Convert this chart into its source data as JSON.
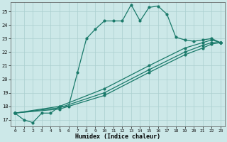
{
  "xlabel": "Humidex (Indice chaleur)",
  "xlim": [
    -0.5,
    23.5
  ],
  "ylim": [
    16.5,
    25.7
  ],
  "xticks": [
    0,
    1,
    2,
    3,
    4,
    5,
    6,
    7,
    8,
    9,
    10,
    11,
    12,
    13,
    14,
    15,
    16,
    17,
    18,
    19,
    20,
    21,
    22,
    23
  ],
  "yticks": [
    17,
    18,
    19,
    20,
    21,
    22,
    23,
    24,
    25
  ],
  "bg_color": "#cce8e8",
  "line_color": "#1a7a6a",
  "grid_color": "#aacfcf",
  "line1_x": [
    0,
    1,
    2,
    3,
    4,
    5,
    6,
    7,
    8,
    9,
    10,
    11,
    12,
    13,
    14,
    15,
    16,
    17,
    18,
    19,
    20,
    21,
    22,
    23
  ],
  "line1_y": [
    17.5,
    17.0,
    16.8,
    17.5,
    17.5,
    18.0,
    18.0,
    20.5,
    23.0,
    23.7,
    24.3,
    24.3,
    24.3,
    25.5,
    24.3,
    25.3,
    25.4,
    24.8,
    23.1,
    22.9,
    22.8,
    22.9,
    23.0,
    22.7
  ],
  "line2_x": [
    0,
    5,
    10,
    15,
    19,
    21,
    22,
    23
  ],
  "line2_y": [
    17.5,
    18.0,
    19.3,
    21.0,
    22.3,
    22.7,
    22.9,
    22.7
  ],
  "line3_x": [
    0,
    5,
    10,
    15,
    19,
    21,
    22,
    23
  ],
  "line3_y": [
    17.5,
    17.9,
    19.0,
    20.7,
    22.0,
    22.5,
    22.7,
    22.7
  ],
  "line4_x": [
    0,
    5,
    10,
    15,
    19,
    21,
    22,
    23
  ],
  "line4_y": [
    17.5,
    17.8,
    18.8,
    20.5,
    21.8,
    22.3,
    22.6,
    22.7
  ]
}
